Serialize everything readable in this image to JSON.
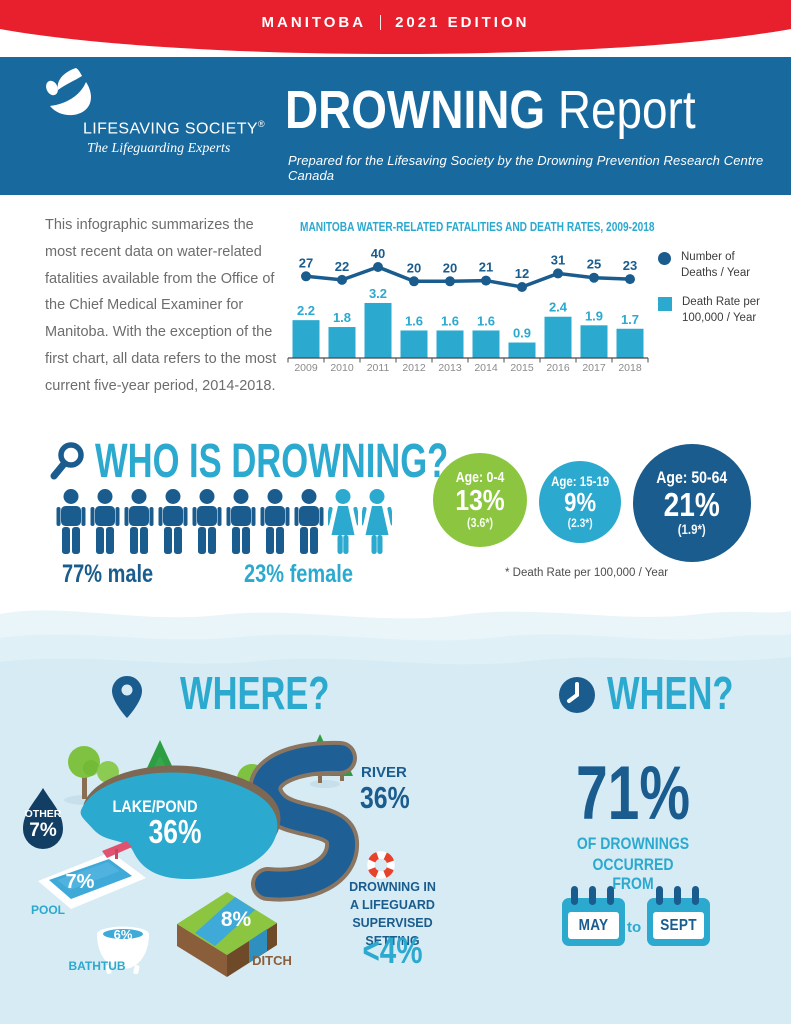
{
  "banner": {
    "left": "MANITOBA",
    "right": "2021 EDITION"
  },
  "header": {
    "logo_name": "LIFESAVING SOCIETY",
    "logo_reg": "®",
    "logo_tagline": "The Lifeguarding Experts",
    "title_bold": "DROWNING",
    "title_light": " Report",
    "subtitle": "Prepared for the Lifesaving Society by the Drowning Prevention Research Centre Canada"
  },
  "intro": "This infographic summarizes the most recent data on water-related fatalities available from the Office of the Chief Medical Examiner for Manitoba. With the exception of the first chart, all data refers to the most current five-year period, 2014-2018.",
  "chart_data": {
    "type": "combo",
    "title": "MANITOBA WATER-RELATED FATALITIES AND DEATH RATES, 2009-2018",
    "categories": [
      "2009",
      "2010",
      "2011",
      "2012",
      "2013",
      "2014",
      "2015",
      "2016",
      "2017",
      "2018"
    ],
    "series": [
      {
        "name": "Number of Deaths / Year",
        "type": "line",
        "color": "#1A5C8E",
        "values": [
          27,
          22,
          40,
          20,
          20,
          21,
          12,
          31,
          25,
          23
        ]
      },
      {
        "name": "Death Rate per 100,000 / Year",
        "type": "bar",
        "color": "#2BA9CF",
        "values": [
          2.2,
          1.8,
          3.2,
          1.6,
          1.6,
          1.6,
          0.9,
          2.4,
          1.9,
          1.7
        ]
      }
    ],
    "legend_position": "right",
    "grid": false
  },
  "who": {
    "heading": "WHO IS DROWNING?",
    "male_count": 8,
    "female_count": 2,
    "male_label": "77% male",
    "female_label": "23% female",
    "age_groups": [
      {
        "label": "Age: 0-4",
        "pct": "13%",
        "rate": "(3.6*)",
        "color": "#8CC640"
      },
      {
        "label": "Age: 15-19",
        "pct": "9%",
        "rate": "(2.3*)",
        "color": "#2BA9CF"
      },
      {
        "label": "Age: 50-64",
        "pct": "21%",
        "rate": "(1.9*)",
        "color": "#1A5C8E"
      }
    ],
    "footnote": "* Death Rate per 100,000 / Year"
  },
  "where": {
    "heading": "WHERE?",
    "lake": {
      "label": "LAKE/POND",
      "value": "36%"
    },
    "river": {
      "label": "RIVER",
      "value": "36%"
    },
    "other": {
      "label": "OTHER",
      "value": "7%"
    },
    "pool": {
      "label": "POOL",
      "value": "7%"
    },
    "bathtub": {
      "label": "BATHTUB",
      "value": "6%"
    },
    "ditch": {
      "label": "DITCH",
      "value": "8%"
    },
    "lifeguard": {
      "line1": "DROWNING IN",
      "line2": "A LIFEGUARD",
      "line3": "SUPERVISED SETTING",
      "value": "<4%"
    }
  },
  "when": {
    "heading": "WHEN?",
    "stat": "71%",
    "desc1": "OF DROWNINGS",
    "desc2": "OCCURRED FROM",
    "from_month": "MAY",
    "connector": "to",
    "to_month": "SEPT"
  },
  "colors": {
    "red": "#E8202E",
    "header_blue": "#17699E",
    "cyan": "#2BA9CF",
    "navy": "#1A5C8E",
    "green": "#8CC640",
    "bg_light": "#D6EBF4"
  }
}
